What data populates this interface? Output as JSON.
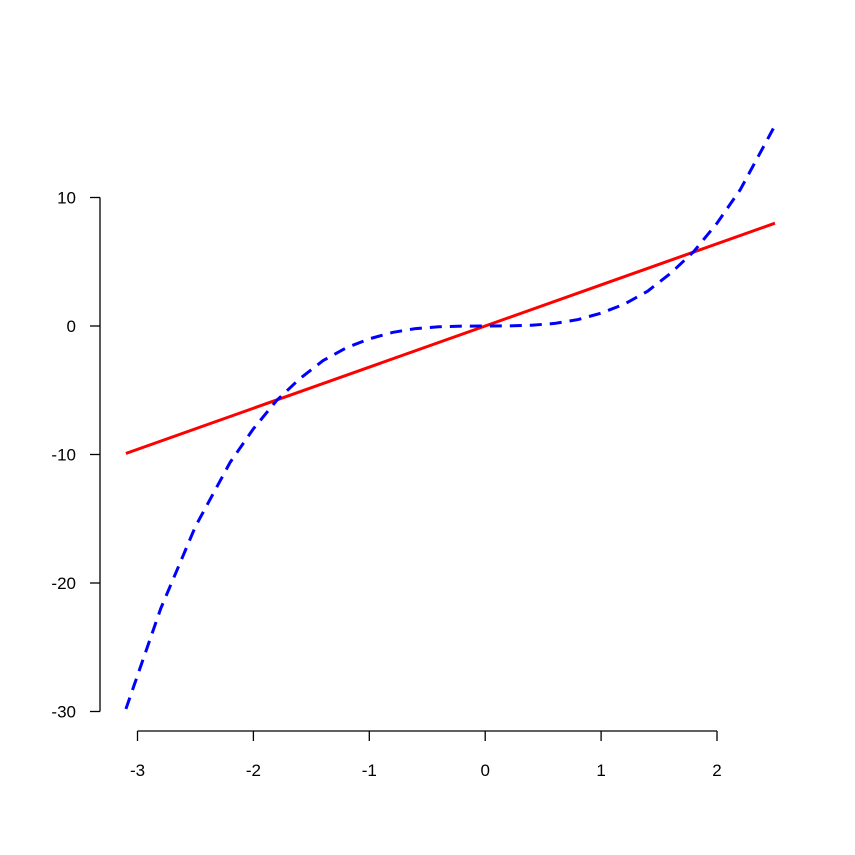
{
  "chart_data": {
    "type": "line",
    "title": "",
    "xlabel": "",
    "ylabel": "",
    "xlim": [
      -3.1,
      2.5
    ],
    "ylim": [
      -30,
      10
    ],
    "grid": false,
    "legend": "none",
    "x_ticks": [
      -3,
      -2,
      -1,
      0,
      1,
      2
    ],
    "x_tick_labels": [
      "-3",
      "-2",
      "-1",
      "0",
      "1",
      "2"
    ],
    "y_ticks": [
      -30,
      -20,
      -10,
      0,
      10
    ],
    "y_tick_labels": [
      "-30",
      "-20",
      "-10",
      "0",
      "10"
    ],
    "series": [
      {
        "color": "#ff0000",
        "style": "solid",
        "x": [
          -3.1,
          2.5
        ],
        "y": [
          -9.92,
          8.0
        ]
      },
      {
        "color": "#0000ff",
        "style": "dashed",
        "x": [
          -3.1,
          -2.8,
          -2.5,
          -2.2,
          -2.0,
          -1.8,
          -1.6,
          -1.4,
          -1.2,
          -1.0,
          -0.8,
          -0.6,
          -0.4,
          -0.2,
          0.0,
          0.2,
          0.4,
          0.6,
          0.8,
          1.0,
          1.2,
          1.4,
          1.6,
          1.8,
          2.0,
          2.2,
          2.5
        ],
        "y": [
          -29.8,
          -22.0,
          -15.6,
          -10.6,
          -8.0,
          -5.8,
          -4.1,
          -2.7,
          -1.7,
          -1.0,
          -0.5,
          -0.2,
          -0.06,
          -0.01,
          0.0,
          0.01,
          0.06,
          0.2,
          0.5,
          1.0,
          1.7,
          2.7,
          4.1,
          5.8,
          8.0,
          10.6,
          15.6
        ]
      }
    ]
  }
}
